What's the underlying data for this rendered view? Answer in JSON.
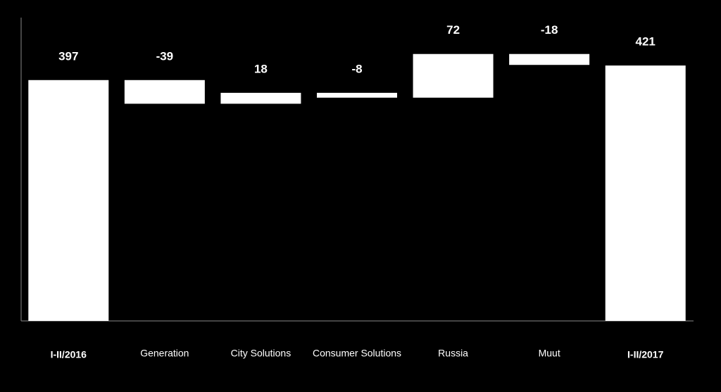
{
  "chart_data": {
    "type": "waterfall",
    "categories": [
      "I-II/2016",
      "Generation",
      "City Solutions",
      "Consumer Solutions",
      "Russia",
      "Muut",
      "I-II/2017"
    ],
    "values": [
      397,
      -39,
      18,
      -8,
      72,
      -18,
      421
    ],
    "color": "#ffffff",
    "ylim": [
      0,
      500
    ]
  }
}
